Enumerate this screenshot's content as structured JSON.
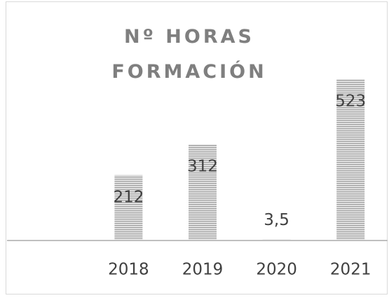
{
  "chart_data": {
    "type": "bar",
    "title": "Nº HORAS FORMACIÓN",
    "categories": [
      null,
      "2018",
      "2019",
      "2020",
      "2021"
    ],
    "values": [
      null,
      212,
      312,
      3.5,
      523
    ],
    "value_labels": [
      null,
      "212",
      "312",
      "3,5",
      "523"
    ],
    "color": "#9e9e9e"
  }
}
